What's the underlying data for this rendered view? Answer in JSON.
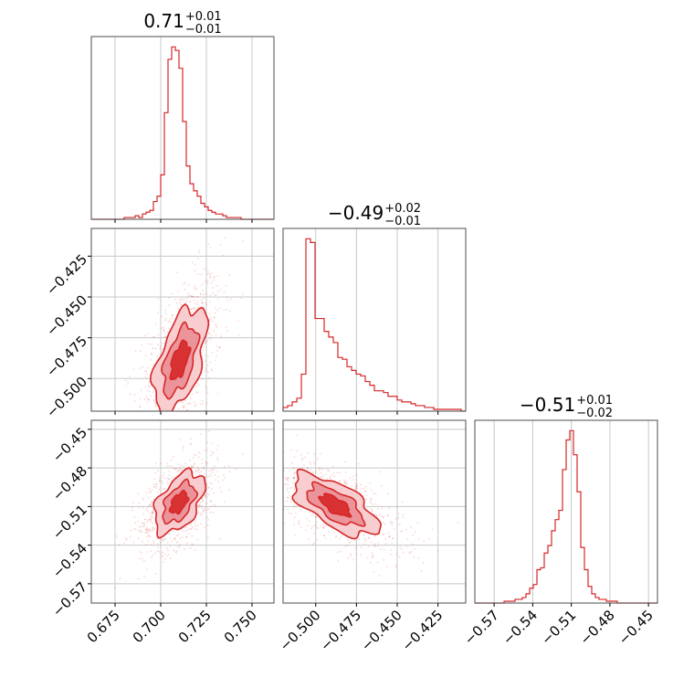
{
  "colors": {
    "accent": "#d62728",
    "fill_light": "#f7c9cc",
    "fill_mid": "#e98a90",
    "fill_dark": "#d62728"
  },
  "chart_data": {
    "type": "corner",
    "parameters": [
      "",
      "",
      ""
    ],
    "titles": [
      {
        "value": "0.71",
        "plus": "+0.01",
        "minus": "−0.01"
      },
      {
        "value": "−0.49",
        "plus": "+0.02",
        "minus": "−0.01"
      },
      {
        "value": "−0.51",
        "plus": "+0.01",
        "minus": "−0.02"
      }
    ],
    "ranges": [
      [
        0.662,
        0.762
      ],
      [
        -0.52,
        -0.408
      ],
      [
        -0.585,
        -0.443
      ]
    ],
    "ticks": [
      {
        "values": [
          0.675,
          0.7,
          0.725,
          0.75
        ],
        "labels": [
          "0.675",
          "0.700",
          "0.725",
          "0.750"
        ]
      },
      {
        "values": [
          -0.5,
          -0.475,
          -0.45,
          -0.425
        ],
        "labels": [
          "−0.500",
          "−0.475",
          "−0.450",
          "−0.425"
        ]
      },
      {
        "values": [
          -0.57,
          -0.54,
          -0.51,
          -0.48,
          -0.45
        ],
        "labels": [
          "−0.57",
          "−0.54",
          "−0.51",
          "−0.48",
          "−0.45"
        ]
      }
    ],
    "histograms": [
      {
        "bins": [
          0.662,
          0.762
        ],
        "counts": [
          0,
          0,
          0,
          0,
          0,
          0,
          0,
          0,
          0,
          1,
          1,
          1,
          2,
          1,
          3,
          4,
          5,
          10,
          13,
          25,
          60,
          90,
          97,
          95,
          85,
          55,
          30,
          20,
          16,
          13,
          9,
          7,
          5,
          4,
          3,
          3,
          2,
          1,
          1,
          1,
          1,
          0,
          0,
          0,
          0,
          0,
          0,
          0,
          0,
          0
        ]
      },
      {
        "bins": [
          -0.52,
          -0.408
        ],
        "counts": [
          2,
          3,
          5,
          7,
          20,
          93,
          91,
          50,
          50,
          43,
          40,
          37,
          29,
          28,
          24,
          22,
          20,
          19,
          16,
          14,
          11,
          11,
          10,
          8,
          8,
          6,
          5,
          5,
          4,
          3,
          3,
          2,
          2,
          1,
          1,
          1,
          1,
          1,
          1,
          0
        ]
      },
      {
        "bins": [
          -0.585,
          -0.443
        ],
        "counts": [
          0,
          0,
          0,
          0,
          0,
          0,
          0,
          0,
          1,
          1,
          1,
          2,
          2,
          3,
          5,
          8,
          10,
          18,
          19,
          27,
          31,
          39,
          45,
          50,
          72,
          88,
          93,
          80,
          60,
          30,
          18,
          9,
          5,
          3,
          2,
          2,
          1,
          1,
          1,
          0,
          0,
          0,
          0,
          0,
          0,
          0,
          0,
          0,
          0,
          0
        ]
      }
    ],
    "pairs": [
      {
        "x": 0,
        "y": 1,
        "center": [
          0.7105,
          -0.489
        ],
        "spread": [
          0.0072,
          0.0165
        ],
        "rho": 0.55
      },
      {
        "x": 0,
        "y": 2,
        "center": [
          0.71,
          -0.507
        ],
        "spread": [
          0.0068,
          0.012
        ],
        "rho": 0.5
      },
      {
        "x": 1,
        "y": 2,
        "center": [
          -0.488,
          -0.509
        ],
        "spread": [
          0.013,
          0.012
        ],
        "rho": -0.65
      }
    ],
    "grid": true
  }
}
